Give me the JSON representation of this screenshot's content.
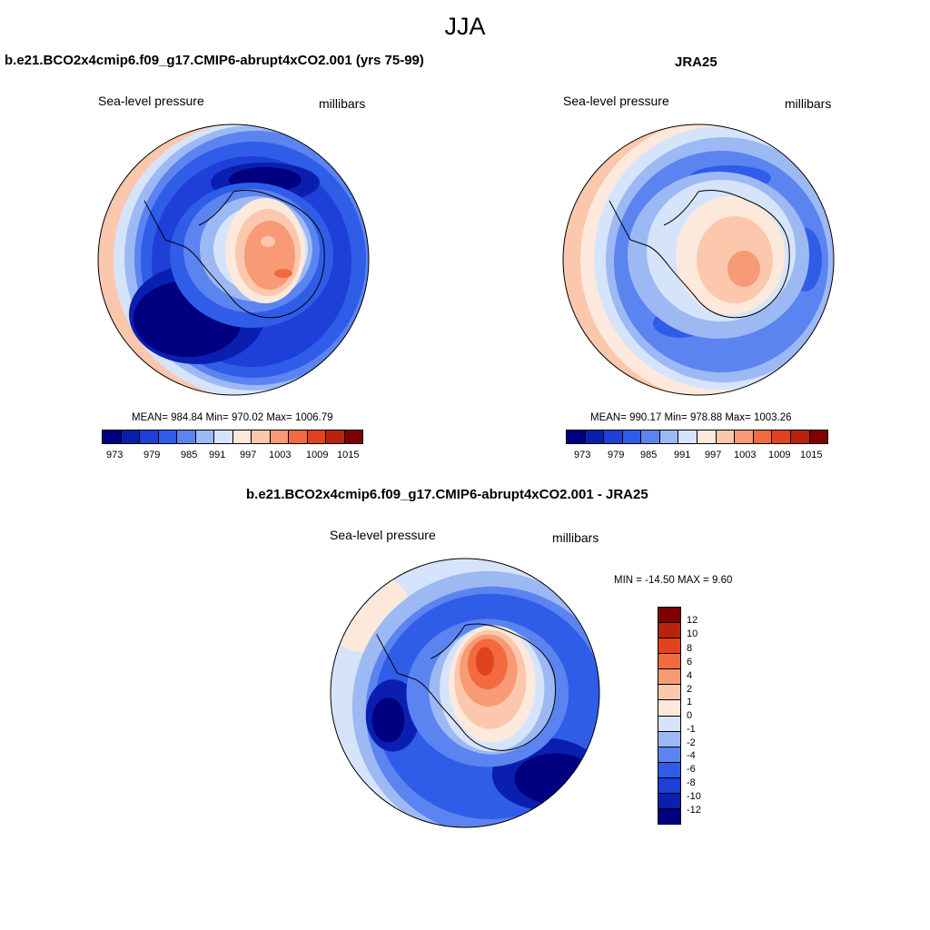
{
  "title": "JJA",
  "colors": [
    "#000080",
    "#0a1fb0",
    "#1e3fd8",
    "#2f5de8",
    "#5b84f0",
    "#9db9f4",
    "#d6e4fb",
    "#fde9dc",
    "#fbc8ad",
    "#f79a75",
    "#f26a3f",
    "#e2431f",
    "#b8230f",
    "#7f0000"
  ],
  "diff_colors": [
    "#000080",
    "#0a1fb0",
    "#1e3fd8",
    "#2f5de8",
    "#5b84f0",
    "#9db9f4",
    "#d6e4fb",
    "#fde9dc",
    "#fbc8ad",
    "#f79a75",
    "#f26a3f",
    "#e2431f",
    "#b8230f",
    "#7f0000",
    "#ffffff",
    "#ffffff"
  ],
  "panels": {
    "model": {
      "title": "b.e21.BCO2x4cmip6.f09_g17.CMIP6-abrupt4xCO2.001 (yrs 75-99)",
      "variable": "Sea-level pressure",
      "units": "millibars",
      "stats": "MEAN= 984.84  Min= 970.02  Max= 1006.79"
    },
    "obs": {
      "title": "JRA25",
      "variable": "Sea-level pressure",
      "units": "millibars",
      "stats": "MEAN= 990.17  Min= 978.88  Max= 1003.26"
    },
    "diff": {
      "title": "b.e21.BCO2x4cmip6.f09_g17.CMIP6-abrupt4xCO2.001 - JRA25",
      "variable": "Sea-level pressure",
      "units": "millibars",
      "stats": "MIN = -14.50 MAX =   9.60"
    }
  },
  "colorbar_labels": [
    "973",
    "979",
    "985",
    "991",
    "997",
    "1003",
    "1009",
    "1015"
  ],
  "diff_colorbar_labels": [
    "12",
    "10",
    "8",
    "6",
    "4",
    "2",
    "1",
    "0",
    "-1",
    "-2",
    "-4",
    "-6",
    "-8",
    "-10",
    "-12"
  ]
}
